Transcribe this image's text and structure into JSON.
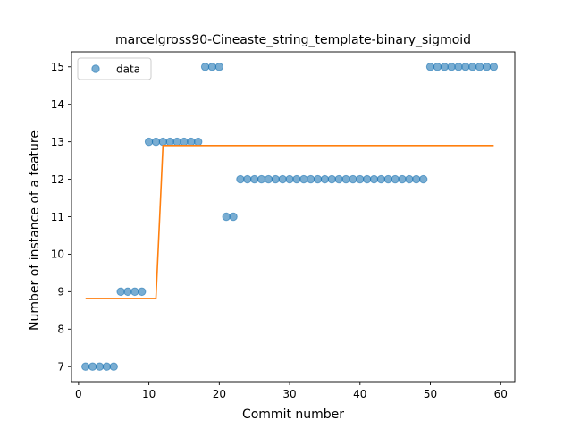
{
  "chart_data": {
    "type": "scatter",
    "title": "marcelgross90-Cineaste_string_template-binary_sigmoid",
    "xlabel": "Commit number",
    "ylabel": "Number of instance of a feature",
    "xlim": [
      -1,
      62
    ],
    "ylim": [
      6.6,
      15.4
    ],
    "xticks": [
      0,
      10,
      20,
      30,
      40,
      50,
      60
    ],
    "yticks": [
      7,
      8,
      9,
      10,
      11,
      12,
      13,
      14,
      15
    ],
    "grid": false,
    "legend": {
      "placement": "top-left",
      "entries": [
        "data"
      ]
    },
    "series": [
      {
        "name": "data",
        "kind": "scatter",
        "color": "#1f77b4",
        "x": [
          1,
          2,
          3,
          4,
          5,
          6,
          7,
          8,
          9,
          10,
          11,
          12,
          13,
          14,
          15,
          16,
          17,
          18,
          19,
          20,
          21,
          22,
          23,
          24,
          25,
          26,
          27,
          28,
          29,
          30,
          31,
          32,
          33,
          34,
          35,
          36,
          37,
          38,
          39,
          40,
          41,
          42,
          43,
          44,
          45,
          46,
          47,
          48,
          49,
          50,
          51,
          52,
          53,
          54,
          55,
          56,
          57,
          58,
          59
        ],
        "y": [
          7,
          7,
          7,
          7,
          7,
          9,
          9,
          9,
          9,
          13,
          13,
          13,
          13,
          13,
          13,
          13,
          13,
          15,
          15,
          15,
          11,
          11,
          12,
          12,
          12,
          12,
          12,
          12,
          12,
          12,
          12,
          12,
          12,
          12,
          12,
          12,
          12,
          12,
          12,
          12,
          12,
          12,
          12,
          12,
          12,
          12,
          12,
          12,
          12,
          15,
          15,
          15,
          15,
          15,
          15,
          15,
          15,
          15,
          15
        ]
      },
      {
        "kind": "line",
        "color": "#ff7f0e",
        "x": [
          1,
          2,
          3,
          4,
          5,
          6,
          7,
          8,
          9,
          10,
          11,
          12,
          13,
          14,
          15,
          16,
          17,
          18,
          19,
          20,
          21,
          22,
          23,
          24,
          25,
          26,
          27,
          28,
          29,
          30,
          31,
          32,
          33,
          34,
          35,
          36,
          37,
          38,
          39,
          40,
          41,
          42,
          43,
          44,
          45,
          46,
          47,
          48,
          49,
          50,
          51,
          52,
          53,
          54,
          55,
          56,
          57,
          58,
          59
        ],
        "y": [
          8.82,
          8.82,
          8.82,
          8.82,
          8.82,
          8.82,
          8.82,
          8.82,
          8.82,
          8.82,
          8.82,
          12.9,
          12.9,
          12.9,
          12.9,
          12.9,
          12.9,
          12.9,
          12.9,
          12.9,
          12.9,
          12.9,
          12.9,
          12.9,
          12.9,
          12.9,
          12.9,
          12.9,
          12.9,
          12.9,
          12.9,
          12.9,
          12.9,
          12.9,
          12.9,
          12.9,
          12.9,
          12.9,
          12.9,
          12.9,
          12.9,
          12.9,
          12.9,
          12.9,
          12.9,
          12.9,
          12.9,
          12.9,
          12.9,
          12.9,
          12.9,
          12.9,
          12.9,
          12.9,
          12.9,
          12.9,
          12.9,
          12.9,
          12.9
        ]
      }
    ]
  }
}
